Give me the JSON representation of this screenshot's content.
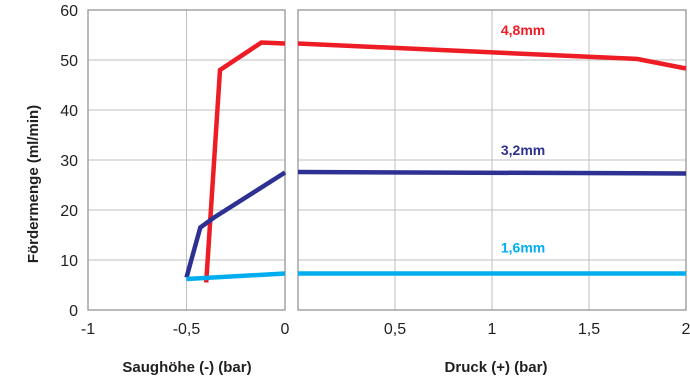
{
  "chart_data": {
    "type": "line",
    "ylabel": "Fördermenge (ml/min)",
    "ylim": [
      0,
      60
    ],
    "yticks": [
      "0",
      "10",
      "20",
      "30",
      "40",
      "50",
      "60"
    ],
    "grid": true,
    "panels": [
      {
        "xlabel": "Saughöhe (-) (bar)",
        "xlim": [
          -1,
          0
        ],
        "xticks": [
          {
            "value": -1,
            "label": "-1"
          },
          {
            "value": -0.5,
            "label": "-0,5"
          },
          {
            "value": 0,
            "label": "0"
          }
        ],
        "series": [
          {
            "name": "4,8mm",
            "color": "#ee1c25",
            "points": [
              [
                -0.4,
                5.5
              ],
              [
                -0.33,
                48
              ],
              [
                -0.12,
                53.5
              ],
              [
                0,
                53.3
              ]
            ]
          },
          {
            "name": "3,2mm",
            "color": "#2e3192",
            "points": [
              [
                -0.5,
                6.5
              ],
              [
                -0.43,
                16.5
              ],
              [
                -0.36,
                18.5
              ],
              [
                0,
                27.5
              ]
            ]
          },
          {
            "name": "1,6mm",
            "color": "#00aeef",
            "points": [
              [
                -0.5,
                6.2
              ],
              [
                0,
                7.3
              ]
            ]
          }
        ]
      },
      {
        "xlabel": "Druck (+) (bar)",
        "xlim": [
          0,
          2
        ],
        "xticks": [
          {
            "value": 0.5,
            "label": "0,5"
          },
          {
            "value": 1,
            "label": "1"
          },
          {
            "value": 1.5,
            "label": "1,5"
          },
          {
            "value": 2,
            "label": "2"
          }
        ],
        "series": [
          {
            "name": "4,8mm",
            "color": "#ee1c25",
            "points": [
              [
                0,
                53.3
              ],
              [
                1.75,
                50.2
              ],
              [
                2,
                48.3
              ]
            ]
          },
          {
            "name": "3,2mm",
            "color": "#2e3192",
            "points": [
              [
                0,
                27.6
              ],
              [
                2,
                27.3
              ]
            ]
          },
          {
            "name": "1,6mm",
            "color": "#00aeef",
            "points": [
              [
                0,
                7.3
              ],
              [
                2,
                7.3
              ]
            ]
          }
        ]
      }
    ],
    "series_labels": [
      {
        "text": "4,8mm",
        "color": "#ee1c25",
        "x": 1.16,
        "y": 55
      },
      {
        "text": "3,2mm",
        "color": "#2e3192",
        "x": 1.16,
        "y": 31
      },
      {
        "text": "1,6mm",
        "color": "#00aeef",
        "x": 1.16,
        "y": 11.5
      }
    ]
  }
}
